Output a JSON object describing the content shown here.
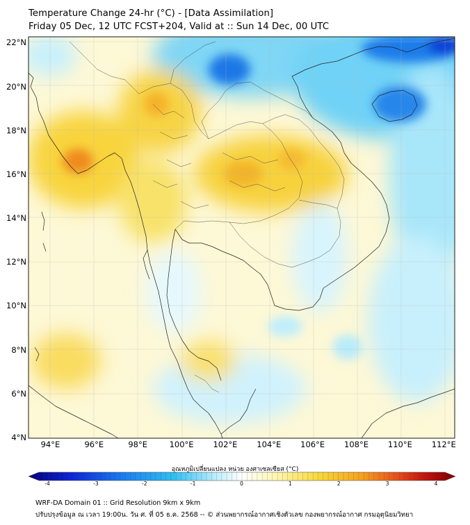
{
  "header": {
    "title_line1": "Temperature Change 24-hr (°C) - [Data Assimilation]",
    "title_line2": "Friday 05 Dec, 12 UTC FCST+204, Valid at :: Sun 14 Dec, 00 UTC"
  },
  "axes": {
    "lat_labels": [
      "22°N",
      "20°N",
      "18°N",
      "16°N",
      "14°N",
      "12°N",
      "10°N",
      "8°N",
      "6°N",
      "4°N"
    ],
    "lat_values": [
      22,
      20,
      18,
      16,
      14,
      12,
      10,
      8,
      6,
      4
    ],
    "lon_labels": [
      "94°E",
      "96°E",
      "98°E",
      "100°E",
      "102°E",
      "104°E",
      "106°E",
      "108°E",
      "110°E",
      "112°E"
    ],
    "lon_values": [
      94,
      96,
      98,
      100,
      102,
      104,
      106,
      108,
      110,
      112
    ],
    "lon_range": [
      93,
      112.5
    ],
    "lat_range": [
      4,
      22.3
    ]
  },
  "colorbar": {
    "label": "อุณหภูมิเปลี่ยนแปลง หน่วย องศาเซลเซียส (°C)",
    "ticks": [
      "-4",
      "-3",
      "-2",
      "-1",
      "0",
      "1",
      "2",
      "3",
      "4"
    ],
    "tick_values": [
      -4,
      -3,
      -2,
      -1,
      0,
      1,
      2,
      3,
      4
    ],
    "range": [
      -4,
      4
    ],
    "colors": [
      "#08007a",
      "#0a25d6",
      "#1b7cf0",
      "#2fc0f2",
      "#bfeefc",
      "#ffffff",
      "#fff7b0",
      "#f8d838",
      "#f6a21c",
      "#e8521c",
      "#c3120e",
      "#7a0000"
    ]
  },
  "footer": {
    "line1": "WRF-DA Domain 01 :: Grid Resolution 9km x 9km",
    "line2": "ปรับปรุงข้อมูล ณ เวลา 19:00น. วัน ศ. ที่ 05 ธ.ค. 2568 -- © ส่วนพยากรณ์อากาศเชิงตัวเลข กองพยากรณ์อากาศ กรมอุตุนิยมวิทยา"
  }
}
